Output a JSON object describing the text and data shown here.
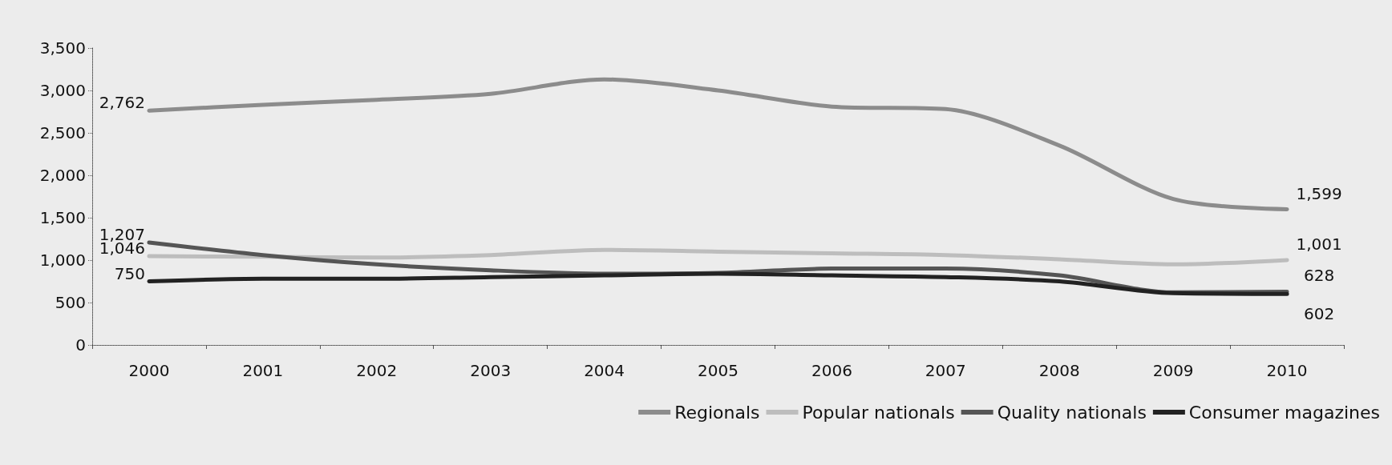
{
  "chart_data": {
    "type": "line",
    "categories": [
      "2000",
      "2001",
      "2002",
      "2003",
      "2004",
      "2005",
      "2006",
      "2007",
      "2008",
      "2009",
      "2010"
    ],
    "ylim": [
      0,
      3500
    ],
    "yticks": [
      0,
      500,
      {
        "value": 1000,
        "label": "1,000"
      },
      {
        "value": 1500,
        "label": "1,500"
      },
      {
        "value": 2000,
        "label": "2,000"
      },
      {
        "value": 2500,
        "label": "2,500"
      },
      {
        "value": 3000,
        "label": "3,000"
      },
      {
        "value": 3500,
        "label": "3,500"
      }
    ],
    "grid": false,
    "legend": "bottom right",
    "marker": "none",
    "line_style": "solid",
    "series": [
      {
        "name": "Regionals",
        "color": "#8c8c8c",
        "values": [
          2762,
          2830,
          2890,
          2960,
          3130,
          3000,
          2810,
          2780,
          2350,
          1720,
          1599
        ],
        "value_labels": [
          "2,762",
          null,
          null,
          null,
          null,
          null,
          null,
          null,
          null,
          null,
          "1,599"
        ]
      },
      {
        "name": "Popular nationals",
        "color": "#bdbdbd",
        "values": [
          1046,
          1040,
          1030,
          1060,
          1120,
          1100,
          1080,
          1060,
          1010,
          950,
          1001
        ],
        "value_labels": [
          "1,046",
          null,
          null,
          null,
          null,
          null,
          null,
          null,
          null,
          null,
          "1,001"
        ]
      },
      {
        "name": "Quality nationals",
        "color": "#555555",
        "values": [
          1207,
          1060,
          950,
          880,
          840,
          850,
          900,
          900,
          820,
          620,
          628
        ],
        "value_labels": [
          "1,207",
          null,
          null,
          null,
          null,
          null,
          null,
          null,
          null,
          null,
          "628"
        ]
      },
      {
        "name": "Consumer magazines",
        "color": "#222222",
        "values": [
          750,
          780,
          780,
          800,
          820,
          840,
          820,
          800,
          750,
          610,
          602
        ],
        "value_labels": [
          "750",
          null,
          null,
          null,
          null,
          null,
          null,
          null,
          null,
          null,
          "602"
        ]
      }
    ]
  }
}
